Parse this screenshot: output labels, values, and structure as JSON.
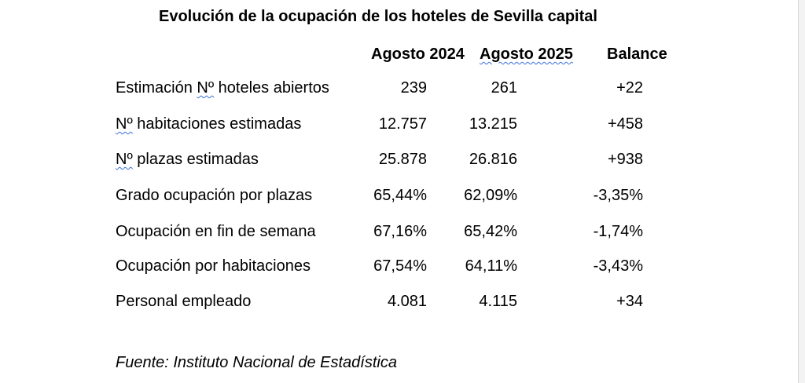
{
  "title": "Evolución de la ocupación de los hoteles de Sevilla capital",
  "headers": {
    "aug2024": "Agosto 2024",
    "aug2025": "Agosto 2025",
    "balance": "Balance"
  },
  "rows": [
    {
      "label_prefix": "Estimación ",
      "label_mark": "Nº",
      "label_suffix": " hoteles abiertos",
      "aug2024": "239",
      "aug2025": "261",
      "balance": "+22"
    },
    {
      "label_prefix": "",
      "label_mark": "Nº",
      "label_suffix": " habitaciones estimadas",
      "aug2024": "12.757",
      "aug2025": "13.215",
      "balance": "+458"
    },
    {
      "label_prefix": "",
      "label_mark": "Nº",
      "label_suffix": " plazas estimadas",
      "aug2024": "25.878",
      "aug2025": "26.816",
      "balance": "+938"
    },
    {
      "label_prefix": "Grado ocupación por plazas",
      "label_mark": "",
      "label_suffix": "",
      "aug2024": "65,44%",
      "aug2025": "62,09%",
      "balance": "-3,35%"
    },
    {
      "label_prefix": "Ocupación en fin de semana",
      "label_mark": "",
      "label_suffix": "",
      "aug2024": "67,16%",
      "aug2025": "65,42%",
      "balance": "-1,74%"
    },
    {
      "label_prefix": "Ocupación por habitaciones",
      "label_mark": "",
      "label_suffix": "",
      "aug2024": "67,54%",
      "aug2025": "64,11%",
      "balance": "-3,43%"
    },
    {
      "label_prefix": "Personal empleado",
      "label_mark": "",
      "label_suffix": "",
      "aug2024": "4.081",
      "aug2025": "4.115",
      "balance": "+34"
    }
  ],
  "source": "Fuente: Instituto Nacional de Estadística"
}
